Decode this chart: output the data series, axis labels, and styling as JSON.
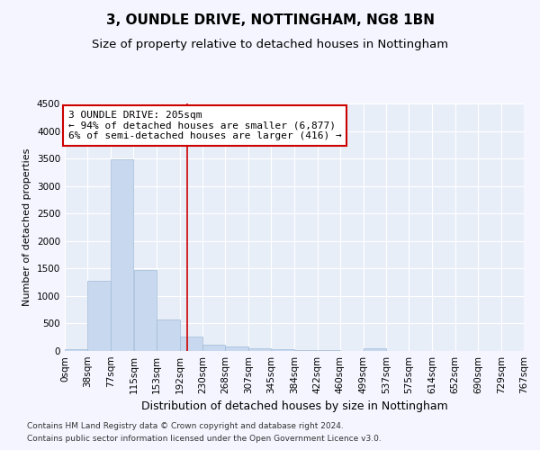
{
  "title": "3, OUNDLE DRIVE, NOTTINGHAM, NG8 1BN",
  "subtitle": "Size of property relative to detached houses in Nottingham",
  "xlabel": "Distribution of detached houses by size in Nottingham",
  "ylabel": "Number of detached properties",
  "bar_color": "#c8d8ee",
  "bar_edge_color": "#a0bcd8",
  "background_color": "#e8eef8",
  "fig_background_color": "#f5f5ff",
  "grid_color": "#ffffff",
  "vline_x": 205,
  "vline_color": "#cc0000",
  "annotation_box_color": "#cc0000",
  "annotation_text": "3 OUNDLE DRIVE: 205sqm\n← 94% of detached houses are smaller (6,877)\n6% of semi-detached houses are larger (416) →",
  "bins": [
    0,
    38,
    77,
    115,
    153,
    192,
    230,
    268,
    307,
    345,
    384,
    422,
    460,
    499,
    537,
    575,
    614,
    652,
    690,
    729,
    767
  ],
  "bar_heights": [
    30,
    1270,
    3490,
    1480,
    575,
    255,
    120,
    80,
    50,
    30,
    10,
    10,
    0,
    55,
    0,
    0,
    0,
    0,
    0,
    0
  ],
  "ylim": [
    0,
    4500
  ],
  "yticks": [
    0,
    500,
    1000,
    1500,
    2000,
    2500,
    3000,
    3500,
    4000,
    4500
  ],
  "footnote1": "Contains HM Land Registry data © Crown copyright and database right 2024.",
  "footnote2": "Contains public sector information licensed under the Open Government Licence v3.0.",
  "title_fontsize": 11,
  "subtitle_fontsize": 9.5,
  "xlabel_fontsize": 9,
  "ylabel_fontsize": 8,
  "tick_fontsize": 7.5,
  "annotation_fontsize": 8,
  "footnote_fontsize": 6.5
}
